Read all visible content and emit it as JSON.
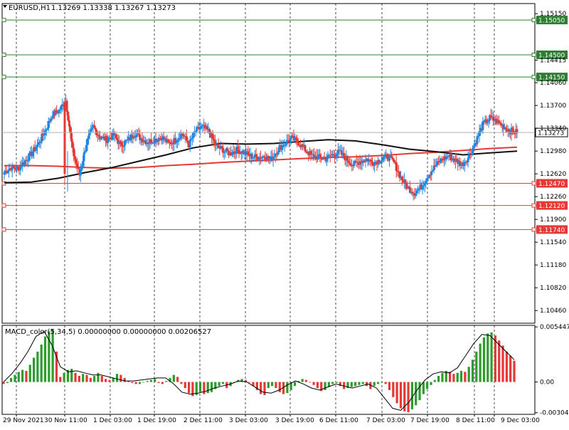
{
  "chart_data": [
    {
      "type": "candlestick",
      "pane": "main",
      "title": "EURUSD,H1",
      "ohlc_text": "1.13269 1.13338 1.13267 1.13273",
      "ylim": [
        1.1026,
        1.1531
      ],
      "y_ticks": [
        "1.15150",
        "1.14415",
        "1.14060",
        "1.13700",
        "1.13340",
        "1.12980",
        "1.12620",
        "1.12260",
        "1.11900",
        "1.11540",
        "1.11180",
        "1.10820",
        "1.10460"
      ],
      "x_tick_labels": [
        "29 Nov 2021",
        "30 Nov 11:00",
        "1 Dec 03:00",
        "1 Dec 19:00",
        "2 Dec 11:00",
        "3 Dec 03:00",
        "3 Dec 19:00",
        "6 Dec 11:00",
        "7 Dec 03:00",
        "7 Dec 19:00",
        "8 Dec 11:00",
        "9 Dec 03:00"
      ],
      "horizontal_levels": [
        {
          "value": 1.1505,
          "label": "1.15050",
          "color": "#2e7d32"
        },
        {
          "value": 1.145,
          "label": "1.14500",
          "color": "#2e7d32"
        },
        {
          "value": 1.1415,
          "label": "1.14150",
          "color": "#2e7d32"
        },
        {
          "value": 1.1247,
          "label": "1.12470",
          "color": "#e53935"
        },
        {
          "value": 1.1212,
          "label": "1.12120",
          "color": "#e53935"
        },
        {
          "value": 1.1174,
          "label": "1.11740",
          "color": "#e53935"
        }
      ],
      "current_price": {
        "value": 1.13273,
        "label": "1.13273"
      },
      "anchors": [
        1.1265,
        1.1272,
        1.127,
        1.1282,
        1.1294,
        1.131,
        1.133,
        1.1355,
        1.1362,
        1.1378,
        1.1298,
        1.126,
        1.131,
        1.1336,
        1.132,
        1.1316,
        1.1323,
        1.1308,
        1.1314,
        1.1326,
        1.1318,
        1.1312,
        1.1316,
        1.132,
        1.131,
        1.1315,
        1.1326,
        1.1308,
        1.133,
        1.1336,
        1.1328,
        1.1305,
        1.13,
        1.1294,
        1.13,
        1.1296,
        1.129,
        1.1288,
        1.129,
        1.1285,
        1.13,
        1.131,
        1.1318,
        1.1312,
        1.13,
        1.129,
        1.1288,
        1.1286,
        1.1292,
        1.1296,
        1.1286,
        1.1276,
        1.1282,
        1.1285,
        1.128,
        1.1284,
        1.129,
        1.128,
        1.1256,
        1.124,
        1.1232,
        1.1242,
        1.126,
        1.1274,
        1.1285,
        1.129,
        1.1283,
        1.1277,
        1.129,
        1.1314,
        1.134,
        1.135,
        1.1345,
        1.1337,
        1.133,
        1.13273
      ],
      "ma_black": [
        1.1248,
        1.1249,
        1.1255,
        1.1264,
        1.1272,
        1.1282,
        1.1292,
        1.1303,
        1.131,
        1.1309,
        1.131,
        1.1313,
        1.1316,
        1.1314,
        1.1308,
        1.1301,
        1.1297,
        1.1292,
        1.1295,
        1.1298
      ],
      "ma_red": [
        1.1275,
        1.1275,
        1.1274,
        1.1272,
        1.1271,
        1.1272,
        1.1275,
        1.1277,
        1.128,
        1.1282,
        1.1284,
        1.1286,
        1.1288,
        1.1289,
        1.1291,
        1.1294,
        1.1296,
        1.1299,
        1.1302,
        1.1304
      ]
    },
    {
      "type": "histogram",
      "pane": "indicator",
      "title": "MACD_color(5,34,5) 0.00000000 0.00000000 0.00206527",
      "ylim": [
        -0.0032,
        0.0056
      ],
      "y_ticks": [
        "0.0054471",
        "0.00",
        "-0.003041"
      ],
      "values": [
        -0.0002,
        -0.0001,
        0.0004,
        0.0007,
        0.001,
        0.0012,
        0.0011,
        0.0017,
        0.0024,
        0.003,
        0.0037,
        0.0045,
        0.005,
        0.0052,
        0.003,
        0.0005,
        0.0009,
        0.0012,
        0.0013,
        0.0009,
        0.0006,
        0.0008,
        0.0007,
        0.0004,
        0.0006,
        0.0009,
        0.0006,
        0.0003,
        0.0002,
        0.0004,
        0.0008,
        0.0007,
        0.0004,
        0.0001,
        -0.0001,
        -0.0002,
        -0.0002,
        0.0,
        0.0001,
        0.0002,
        0.0003,
        -0.0001,
        -0.0002,
        0.0001,
        0.0004,
        0.0007,
        0.0005,
        -0.0002,
        -0.0006,
        -0.0011,
        -0.0014,
        -0.0013,
        -0.001,
        -0.0012,
        -0.0011,
        -0.001,
        -0.0007,
        -0.0004,
        -0.0002,
        -0.0006,
        -0.0004,
        0.0,
        0.0002,
        0.0003,
        0.0002,
        0.0,
        -0.0004,
        -0.0008,
        -0.0012,
        -0.0013,
        -0.0006,
        -0.0004,
        -0.0006,
        -0.001,
        -0.0012,
        -0.0011,
        -0.0008,
        -0.0004,
        0.0001,
        0.0003,
        0.0002,
        0.0,
        -0.0003,
        -0.0006,
        -0.0009,
        -0.0008,
        -0.0005,
        -0.0002,
        -0.0001,
        -0.0004,
        -0.0007,
        -0.0006,
        -0.0005,
        -0.0004,
        -0.0003,
        -0.0002,
        -0.0004,
        -0.0007,
        -0.0004,
        -0.0002,
        0.0,
        -0.0002,
        -0.0008,
        -0.0015,
        -0.0021,
        -0.0026,
        -0.0029,
        -0.003,
        -0.0027,
        -0.0023,
        -0.0018,
        -0.0012,
        -0.0007,
        -0.0003,
        0.0002,
        0.0006,
        0.0009,
        0.0011,
        0.001,
        0.0008,
        0.0009,
        0.0011,
        0.001,
        0.0015,
        0.0022,
        0.003,
        0.0038,
        0.0044,
        0.0048,
        0.0049,
        0.0046,
        0.0041,
        0.0036,
        0.003,
        0.0026,
        0.0021
      ],
      "signal": [
        0.0,
        0.0008,
        0.0018,
        0.003,
        0.0045,
        0.005,
        0.0036,
        0.0015,
        0.001,
        0.0011,
        0.0009,
        0.0007,
        0.0007,
        0.0005,
        0.0003,
        0.0001,
        0.0001,
        0.0002,
        0.0003,
        0.0004,
        0.0004,
        -0.0002,
        -0.001,
        -0.0012,
        -0.0011,
        -0.0009,
        -0.0006,
        -0.0004,
        -0.0002,
        0.0001,
        0.0,
        -0.0005,
        -0.001,
        -0.0011,
        -0.0008,
        -0.0003,
        0.0001,
        -0.0002,
        -0.0006,
        -0.0008,
        -0.0005,
        -0.0002,
        -0.0004,
        -0.0006,
        -0.0004,
        -0.0002,
        -0.0006,
        -0.0016,
        -0.0026,
        -0.0028,
        -0.002,
        -0.0008,
        0.0002,
        0.0008,
        0.001,
        0.0009,
        0.0014,
        0.0026,
        0.0038,
        0.0047,
        0.0046,
        0.0038,
        0.003,
        0.0022
      ]
    }
  ],
  "colors": {
    "bull": "#1e88e5",
    "bear": "#e53935",
    "hist_up": "#2e9b2e",
    "hist_down": "#e53935",
    "ma_black": "#111111",
    "ma_red": "#e53935",
    "support_green": "#2e7d32",
    "support_red": "#e53935"
  }
}
